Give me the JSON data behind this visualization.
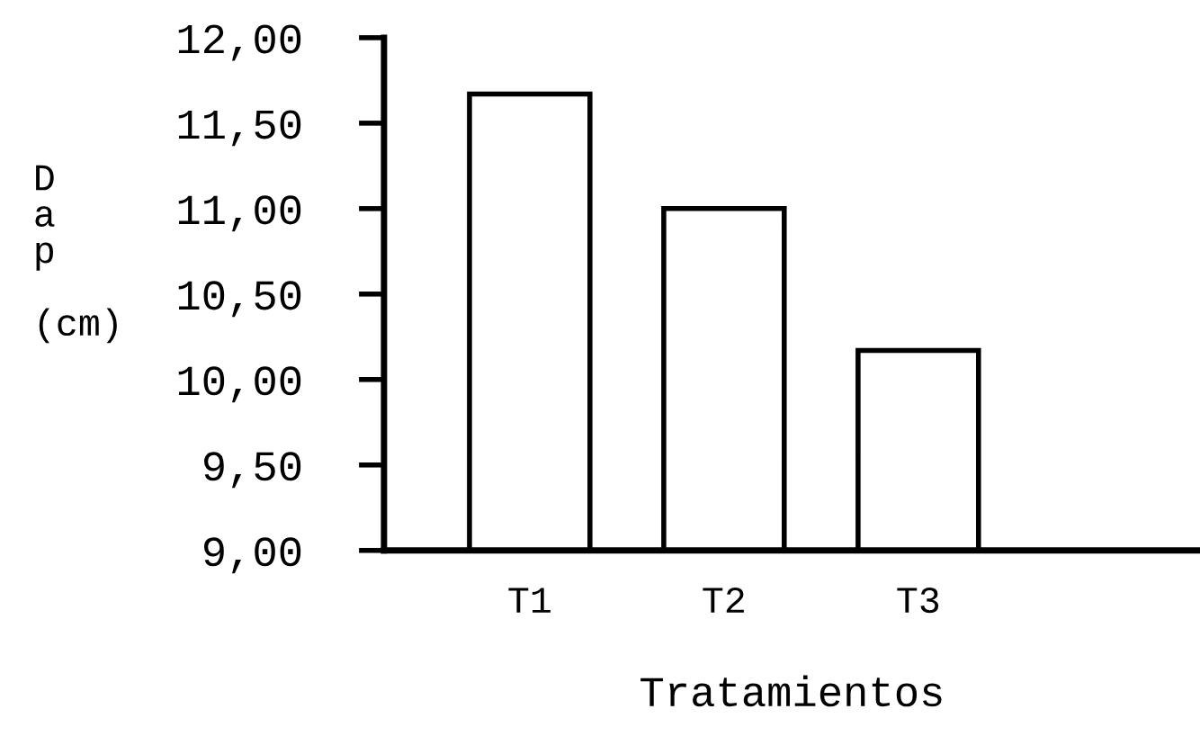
{
  "chart_data": {
    "type": "bar",
    "xlabel": "Tratamientos",
    "ylabel": "D\na\np\n\n(cm)",
    "categories": [
      "T1",
      "T2",
      "T3"
    ],
    "values": [
      11.67,
      11.0,
      10.17
    ],
    "color": "#ffffff",
    "ylim": [
      9,
      12
    ],
    "yticks": [
      {
        "value": 9,
        "label": "9,00"
      },
      {
        "value": 9.5,
        "label": "9,50"
      },
      {
        "value": 10,
        "label": "10,00"
      },
      {
        "value": 10.5,
        "label": "10,50"
      },
      {
        "value": 11,
        "label": "11,00"
      },
      {
        "value": 11.5,
        "label": "11,50"
      },
      {
        "value": 12,
        "label": "12,00"
      }
    ],
    "grid": false,
    "legend": false
  }
}
